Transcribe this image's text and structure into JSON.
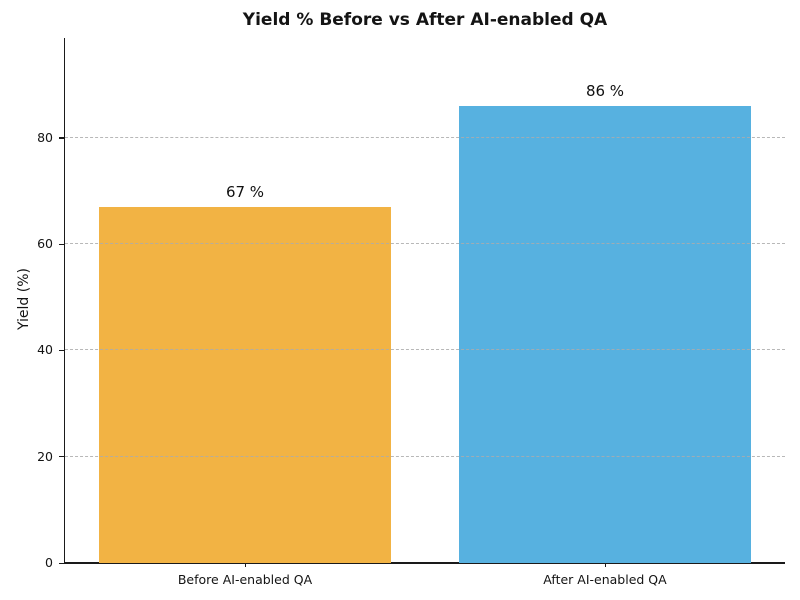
{
  "figure": {
    "background": "#ffffff"
  },
  "chart_data": {
    "type": "bar",
    "title": "Yield % Before vs After AI-enabled QA",
    "categories": [
      "Before AI-enabled QA",
      "After AI-enabled QA"
    ],
    "values": [
      67,
      86
    ],
    "bar_value_labels": [
      "67 %",
      "86 %"
    ],
    "bar_colors": [
      "#f2b344",
      "#57b1e0"
    ],
    "xlabel": "",
    "ylabel": "Yield (%)",
    "yticks": [
      0,
      20,
      40,
      60,
      80
    ],
    "ylim": [
      0,
      98.8
    ],
    "grid": "horizontal-dashed-over-bars",
    "legend": "none",
    "title_color": "#141414",
    "axis_color": "#1a1a1a",
    "grid_color": "#acacac"
  }
}
